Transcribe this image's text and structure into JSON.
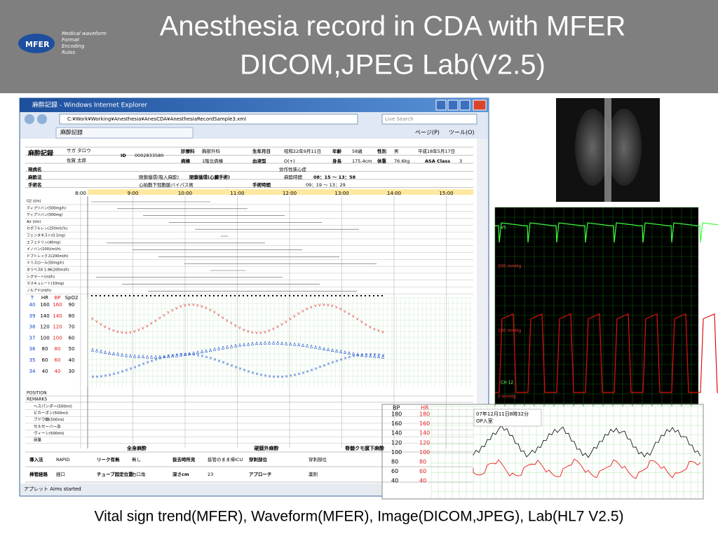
{
  "header": {
    "title_lines": [
      "Anesthesia record in CDA with MFER",
      "DICOM,JPEG Lab(V2.5)"
    ],
    "logo": {
      "name": "MFER",
      "lines": [
        "Medical waveform",
        "Format",
        "Encoding",
        "Rules"
      ]
    }
  },
  "browser": {
    "title": "麻酔記録 - Windows Internet Explorer",
    "address": "C:¥Work¥Working¥Anesthesia¥AnesCDA¥AnesthesiaRecordSample3.xml",
    "search": "Live Search",
    "tab": "麻酔記録",
    "page_menu": "ページ(P)",
    "tool_menu": "ツール(O)",
    "status": "アプレット Aims started"
  },
  "record": {
    "info": [
      [
        "麻酔記録",
        "サガ タロウ",
        "佐賀 太郎",
        "ID",
        "0002833580",
        "診療科",
        "胸部外科",
        "生年月日",
        "昭和22年9月11日",
        "年齢",
        "58歳",
        "性別",
        "男",
        "平成18年5月17日"
      ],
      [
        "病棟",
        "1階北病棟",
        "血液型",
        "O(+)",
        "身長",
        "175.4cm",
        "体重",
        "76.6kg",
        "ASA Class",
        "3"
      ],
      [
        "現病名",
        "労作性狭心症"
      ],
      [
        "麻酔法",
        "閉鎖循環(吸入麻酔)",
        "閉鎖循環(心臓手術)",
        "麻酔時間",
        "08：15 〜 13：58"
      ],
      [
        "手術名",
        "心拍動下冠動脈バイパス術",
        "手術時間",
        "09：19 〜 13：29"
      ]
    ],
    "times": [
      "8:00",
      "9:00",
      "10:00",
      "11:00",
      "12:00",
      "13:00",
      "14:00",
      "15:00"
    ],
    "drugs": [
      "O2 (l/m)",
      "ディプリバン(500mg/h)",
      "ディプリバン(500mg)",
      "Air (l/m)",
      "セボフルレン(250ml)(%)",
      "フェンタネスト(0.1mg)",
      "エフェドリン(40mg)",
      "イノバン(100)(ml/h)",
      "ドブトレックス(200ml/h)",
      "ミリスロール(50mg/h)",
      "オリベスK 1.96(200ml/h)",
      "シグマート(ml/h)",
      "マスキュレート(10mg)",
      "ノルアド(ml/h)"
    ],
    "vitals_header": [
      "T",
      "HR",
      "BP",
      "SpO2"
    ],
    "vitals_rows": [
      [
        40,
        160,
        160,
        90
      ],
      [
        39,
        140,
        140,
        80
      ],
      [
        38,
        120,
        120,
        70
      ],
      [
        37,
        100,
        100,
        60
      ],
      [
        36,
        80,
        80,
        50
      ],
      [
        35,
        60,
        60,
        40
      ],
      [
        34,
        40,
        40,
        30
      ]
    ],
    "sections": [
      "POSITION",
      "REMARKS"
    ],
    "fluids": [
      "ヘスパンダー(500ml)",
      "ビカーボン(500ml)",
      "ブドウ糖(500ml)",
      "セルセーバー血",
      "ヴィーン(500ml)",
      "尿量"
    ],
    "bottom_headers": [
      "全身麻酔",
      "硬膜外麻酔",
      "脊髄クモ膜下麻酔"
    ],
    "bottom_rows": [
      [
        "導入法",
        "RAPID",
        "リーク有無",
        "無し",
        "抜去時所見",
        "抜管のまま帰ICU",
        "穿刺部位",
        "穿刺部位"
      ],
      [
        "挿管経路",
        "経口",
        "チューブ固定位置",
        "右口角",
        "深さcm",
        "23",
        "アプローチ",
        "薬剤"
      ]
    ]
  },
  "waveform": {
    "labels": [
      "V5",
      "200 mmHg",
      "100 mmHg",
      "CH 12",
      "0 mmHg"
    ]
  },
  "trend": {
    "headers": [
      "BP",
      "HR"
    ],
    "rows": [
      [
        180,
        180
      ],
      [
        160,
        160
      ],
      [
        140,
        140
      ],
      [
        120,
        120
      ],
      [
        100,
        100
      ],
      [
        80,
        80
      ],
      [
        60,
        60
      ],
      [
        40,
        40
      ]
    ],
    "annotation": [
      "07年12月11日8時32分",
      "OP入室"
    ]
  },
  "caption": "Vital sign trend(MFER), Waveform(MFER), Image(DICOM,JPEG), Lab(HL7 V2.5)"
}
